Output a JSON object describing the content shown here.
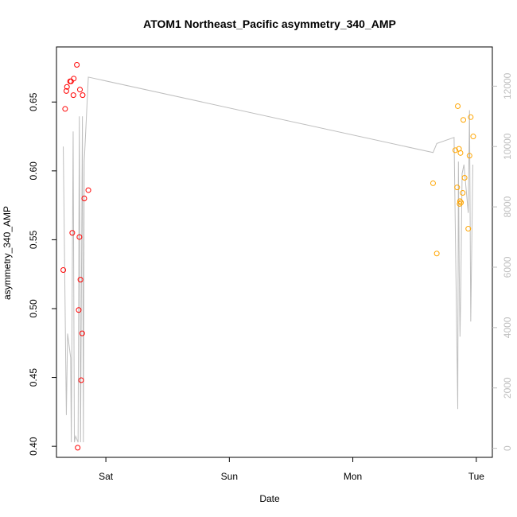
{
  "chart_data": {
    "type": "scatter",
    "title": "ATOM1 Northeast_Pacific asymmetry_340_AMP",
    "xlabel": "Date",
    "ylabel": "asymmetry_340_AMP",
    "x_ticks": [
      {
        "label": "Sat",
        "day": 1.0
      },
      {
        "label": "Sun",
        "day": 2.0
      },
      {
        "label": "Mon",
        "day": 3.0
      },
      {
        "label": "Tue",
        "day": 4.0
      }
    ],
    "xlim_days": [
      0.6,
      4.13
    ],
    "ylim": [
      0.392,
      0.69
    ],
    "y_ticks": [
      0.4,
      0.45,
      0.5,
      0.55,
      0.6,
      0.65
    ],
    "y_right_ticks": [
      0,
      2000,
      4000,
      6000,
      8000,
      10000,
      12000
    ],
    "y_right_lim": [
      -300,
      13300
    ],
    "grid": false,
    "series": [
      {
        "color": "#ff0000",
        "points": [
          {
            "day": 0.655,
            "y": 0.528
          },
          {
            "day": 0.67,
            "y": 0.645
          },
          {
            "day": 0.68,
            "y": 0.658
          },
          {
            "day": 0.685,
            "y": 0.661
          },
          {
            "day": 0.71,
            "y": 0.665
          },
          {
            "day": 0.718,
            "y": 0.665
          },
          {
            "day": 0.728,
            "y": 0.555
          },
          {
            "day": 0.737,
            "y": 0.655
          },
          {
            "day": 0.74,
            "y": 0.667
          },
          {
            "day": 0.765,
            "y": 0.677
          },
          {
            "day": 0.772,
            "y": 0.399
          },
          {
            "day": 0.78,
            "y": 0.499
          },
          {
            "day": 0.786,
            "y": 0.552
          },
          {
            "day": 0.79,
            "y": 0.659
          },
          {
            "day": 0.794,
            "y": 0.521
          },
          {
            "day": 0.8,
            "y": 0.448
          },
          {
            "day": 0.808,
            "y": 0.482
          },
          {
            "day": 0.812,
            "y": 0.655
          },
          {
            "day": 0.825,
            "y": 0.58
          },
          {
            "day": 0.858,
            "y": 0.586
          }
        ]
      },
      {
        "color": "#ffa500",
        "points": [
          {
            "day": 3.65,
            "y": 0.591
          },
          {
            "day": 3.68,
            "y": 0.54
          },
          {
            "day": 3.83,
            "y": 0.615
          },
          {
            "day": 3.845,
            "y": 0.588
          },
          {
            "day": 3.85,
            "y": 0.647
          },
          {
            "day": 3.86,
            "y": 0.616
          },
          {
            "day": 3.865,
            "y": 0.576
          },
          {
            "day": 3.868,
            "y": 0.578
          },
          {
            "day": 3.872,
            "y": 0.613
          },
          {
            "day": 3.876,
            "y": 0.577
          },
          {
            "day": 3.89,
            "y": 0.584
          },
          {
            "day": 3.895,
            "y": 0.637
          },
          {
            "day": 3.905,
            "y": 0.595
          },
          {
            "day": 3.935,
            "y": 0.558
          },
          {
            "day": 3.945,
            "y": 0.611
          },
          {
            "day": 3.955,
            "y": 0.639
          },
          {
            "day": 3.975,
            "y": 0.625
          }
        ]
      }
    ],
    "right_series": {
      "color": "#bebebe",
      "points": [
        [
          0.655,
          10000
        ],
        [
          0.68,
          1100
        ],
        [
          0.69,
          3800
        ],
        [
          0.715,
          3000
        ],
        [
          0.72,
          200
        ],
        [
          0.735,
          10500
        ],
        [
          0.745,
          200
        ],
        [
          0.755,
          400
        ],
        [
          0.775,
          200
        ],
        [
          0.785,
          11000
        ],
        [
          0.795,
          200
        ],
        [
          0.81,
          11000
        ],
        [
          0.818,
          200
        ],
        [
          0.825,
          9500
        ],
        [
          0.858,
          12300
        ],
        [
          3.65,
          9800
        ],
        [
          3.68,
          10100
        ],
        [
          3.82,
          10300
        ],
        [
          3.85,
          1300
        ],
        [
          3.855,
          9500
        ],
        [
          3.862,
          5800
        ],
        [
          3.868,
          3700
        ],
        [
          3.875,
          5400
        ],
        [
          3.885,
          9100
        ],
        [
          3.9,
          9400
        ],
        [
          3.935,
          7800
        ],
        [
          3.945,
          11200
        ],
        [
          3.955,
          4200
        ],
        [
          3.972,
          9400
        ]
      ]
    }
  }
}
